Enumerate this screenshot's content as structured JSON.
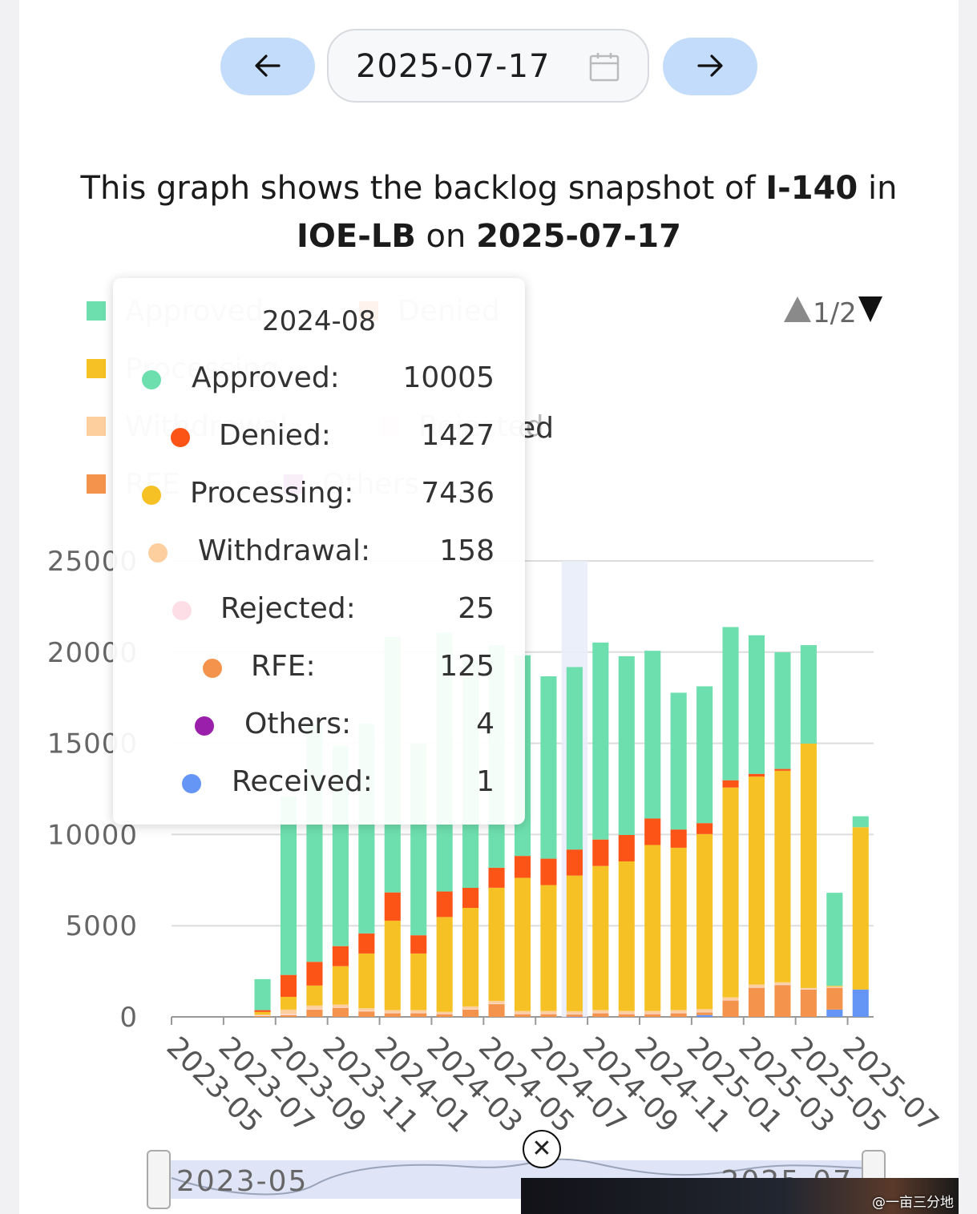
{
  "date_picker": {
    "prev_icon": "arrow-left-icon",
    "next_icon": "arrow-right-icon",
    "calendar_icon": "calendar-icon",
    "value": "2025-07-17"
  },
  "headline": {
    "prefix": "This graph shows the backlog snapshot of ",
    "form": "I-140",
    "mid": " in ",
    "office": "IOE-LB",
    "on": " on ",
    "date": "2025-07-17"
  },
  "legend": {
    "page_indicator": "1/2",
    "items": [
      {
        "label": "Approved",
        "color": "#6ddfae"
      },
      {
        "label": "Denied",
        "color": "#fc5316"
      },
      {
        "label": "Processing",
        "color": "#f6c125"
      },
      {
        "label": "Withdrawal",
        "color": "#fdcf9f"
      },
      {
        "label": "Rejected",
        "color": "#fddde6"
      },
      {
        "label": "RFE",
        "color": "#f4944c"
      },
      {
        "label": "Others",
        "color": "#9a1faa"
      }
    ],
    "visible_overflow_text": "ed"
  },
  "tooltip": {
    "title": "2024-08",
    "rows": [
      {
        "label": "Approved:",
        "value": "10005",
        "color": "#6ddfae"
      },
      {
        "label": "Denied:",
        "value": "1427",
        "color": "#fc5316"
      },
      {
        "label": "Processing:",
        "value": "7436",
        "color": "#f6c125"
      },
      {
        "label": "Withdrawal:",
        "value": "158",
        "color": "#fdcf9f"
      },
      {
        "label": "Rejected:",
        "value": "25",
        "color": "#fddde6"
      },
      {
        "label": "RFE:",
        "value": "125",
        "color": "#f4944c"
      },
      {
        "label": "Others:",
        "value": "4",
        "color": "#9a1faa"
      },
      {
        "label": "Received:",
        "value": "1",
        "color": "#6596f5"
      }
    ]
  },
  "zoom_slider": {
    "start_label": "2023-05",
    "end_label": "2025-07"
  },
  "watermark": "@一亩三分地",
  "close_icon": "close-circle-icon",
  "chart_data": {
    "type": "bar",
    "stacked": true,
    "ylim": [
      0,
      25000
    ],
    "yticks": [
      "0",
      "5000",
      "10000",
      "15000",
      "20000",
      "25000"
    ],
    "grid": true,
    "legend_position": "top",
    "highlighted_category": "2024-08",
    "categories": [
      "2023-05",
      "2023-06",
      "2023-07",
      "2023-08",
      "2023-09",
      "2023-10",
      "2023-11",
      "2023-12",
      "2024-01",
      "2024-02",
      "2024-03",
      "2024-04",
      "2024-05",
      "2024-06",
      "2024-07",
      "2024-08",
      "2024-09",
      "2024-10",
      "2024-11",
      "2024-12",
      "2025-01",
      "2025-02",
      "2025-03",
      "2025-04",
      "2025-05",
      "2025-06",
      "2025-07"
    ],
    "x_tick_labels": [
      "2023-05",
      "2023-07",
      "2023-09",
      "2023-11",
      "2024-01",
      "2024-03",
      "2024-05",
      "2024-07",
      "2024-09",
      "2024-11",
      "2025-01",
      "2025-03",
      "2025-05",
      "2025-07"
    ],
    "series": [
      {
        "name": "Others",
        "color": "#9a1faa",
        "values": [
          0,
          0,
          0,
          0,
          0,
          0,
          0,
          0,
          0,
          0,
          0,
          0,
          0,
          0,
          0,
          4,
          0,
          0,
          0,
          0,
          0,
          0,
          0,
          0,
          0,
          0,
          0
        ]
      },
      {
        "name": "Received",
        "color": "#6596f5",
        "values": [
          0,
          0,
          0,
          0,
          0,
          0,
          0,
          0,
          0,
          0,
          0,
          0,
          0,
          0,
          0,
          1,
          0,
          0,
          0,
          0,
          100,
          0,
          0,
          0,
          0,
          400,
          1500
        ]
      },
      {
        "name": "RFE",
        "color": "#f4944c",
        "values": [
          0,
          0,
          0,
          50,
          100,
          400,
          500,
          300,
          200,
          200,
          150,
          400,
          700,
          150,
          150,
          125,
          200,
          150,
          150,
          200,
          150,
          900,
          1600,
          1750,
          1500,
          1200,
          0
        ]
      },
      {
        "name": "Rejected",
        "color": "#fddde6",
        "values": [
          0,
          0,
          0,
          20,
          50,
          20,
          30,
          25,
          25,
          25,
          25,
          25,
          30,
          25,
          25,
          25,
          25,
          25,
          25,
          25,
          25,
          25,
          25,
          25,
          25,
          25,
          0
        ]
      },
      {
        "name": "Withdrawal",
        "color": "#fdcf9f",
        "values": [
          0,
          0,
          0,
          50,
          250,
          200,
          150,
          150,
          150,
          150,
          100,
          150,
          150,
          150,
          150,
          158,
          150,
          150,
          150,
          150,
          150,
          150,
          150,
          120,
          60,
          30,
          0
        ]
      },
      {
        "name": "Processing",
        "color": "#f6c125",
        "values": [
          0,
          0,
          0,
          150,
          700,
          1100,
          2100,
          3000,
          4900,
          3100,
          5200,
          5400,
          6200,
          7300,
          6900,
          7436,
          7900,
          8200,
          9100,
          8900,
          9600,
          11500,
          11400,
          11600,
          13400,
          50,
          8900
        ]
      },
      {
        "name": "Denied",
        "color": "#fc5316",
        "values": [
          0,
          0,
          0,
          100,
          1200,
          1300,
          1100,
          1100,
          1550,
          1000,
          1400,
          1100,
          1100,
          1200,
          1450,
          1427,
          1450,
          1450,
          1450,
          1000,
          600,
          400,
          150,
          100,
          0,
          0,
          0
        ]
      },
      {
        "name": "Approved",
        "color": "#6ddfae",
        "values": [
          0,
          0,
          0,
          1700,
          9800,
          13000,
          11000,
          11500,
          14000,
          10500,
          14200,
          12500,
          12200,
          11000,
          10000,
          10005,
          10800,
          9800,
          9200,
          7500,
          7500,
          8400,
          7600,
          6400,
          5400,
          5100,
          600
        ]
      }
    ]
  }
}
